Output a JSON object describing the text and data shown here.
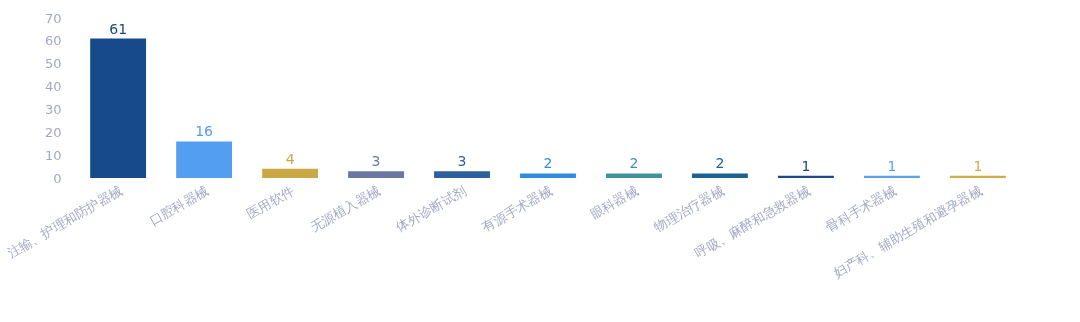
{
  "chart_data": {
    "type": "bar",
    "categories": [
      "注输、护理和防护器械",
      "口腔科器械",
      "医用软件",
      "无源植入器械",
      "体外诊断试剂",
      "有源手术器械",
      "眼科器械",
      "物理治疗器械",
      "呼吸、麻醉和急救器械",
      "骨科手术器械",
      "妇产科、辅助生殖和避孕器械"
    ],
    "values": [
      61,
      16,
      4,
      3,
      3,
      2,
      2,
      2,
      1,
      1,
      1
    ],
    "colors": [
      "#174a8a",
      "#539ef0",
      "#c9a845",
      "#6b77a3",
      "#2c5f9c",
      "#2e8ddd",
      "#3f939e",
      "#1a6390",
      "#1c4a85",
      "#5aa3ee",
      "#d2aa4a"
    ],
    "ylim": [
      0,
      70
    ],
    "yticks": [
      0,
      10,
      20,
      30,
      40,
      50,
      60,
      70
    ],
    "grid": false,
    "data_labels": true
  }
}
